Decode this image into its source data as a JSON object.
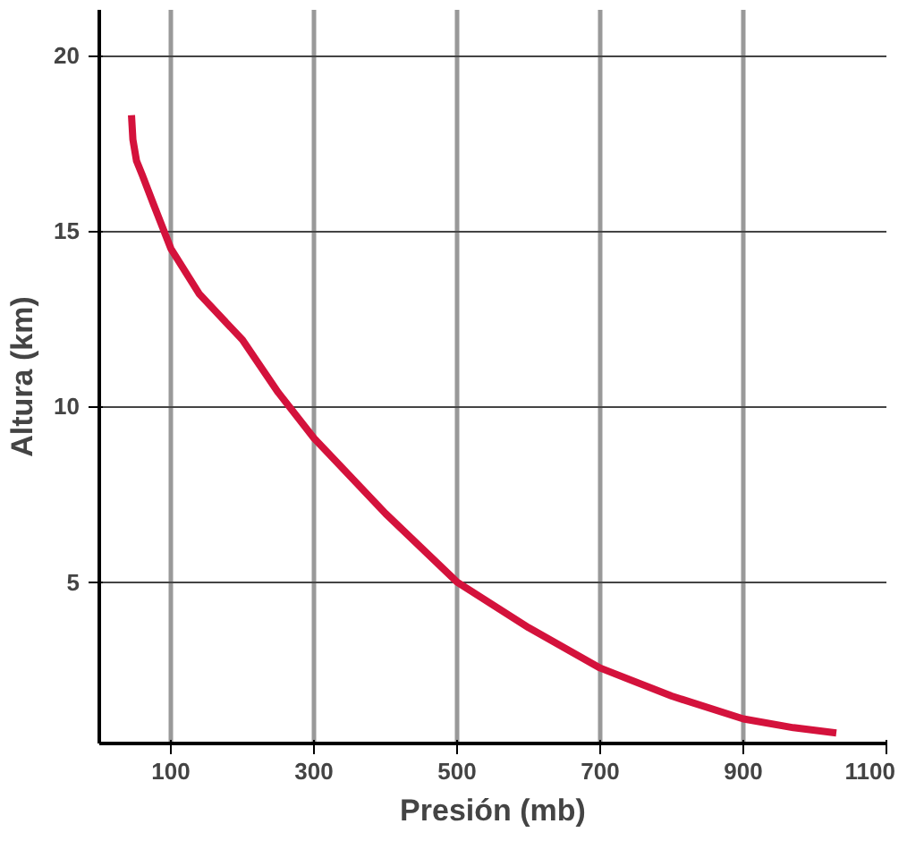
{
  "chart_data": {
    "type": "line",
    "xlabel": "Presión (mb)",
    "ylabel": "Altura (km)",
    "series": [
      {
        "color": "#d4123c",
        "x": [
          45,
          47,
          52,
          60,
          75,
          100,
          140,
          200,
          250,
          300,
          400,
          500,
          600,
          700,
          800,
          900,
          970,
          1030
        ],
        "values": [
          18.3,
          17.6,
          17.0,
          16.6,
          15.8,
          14.5,
          13.2,
          11.9,
          10.4,
          9.1,
          6.95,
          5.0,
          3.7,
          2.55,
          1.75,
          1.1,
          0.85,
          0.7
        ]
      }
    ],
    "xlim": [
      0,
      1100
    ],
    "ylim": [
      0.4,
      21.3
    ],
    "xticks": [
      100,
      300,
      500,
      700,
      900,
      1100
    ],
    "yticks": [
      5,
      10,
      15,
      20
    ],
    "grid": true,
    "line_style": "solid",
    "marker": "none"
  }
}
